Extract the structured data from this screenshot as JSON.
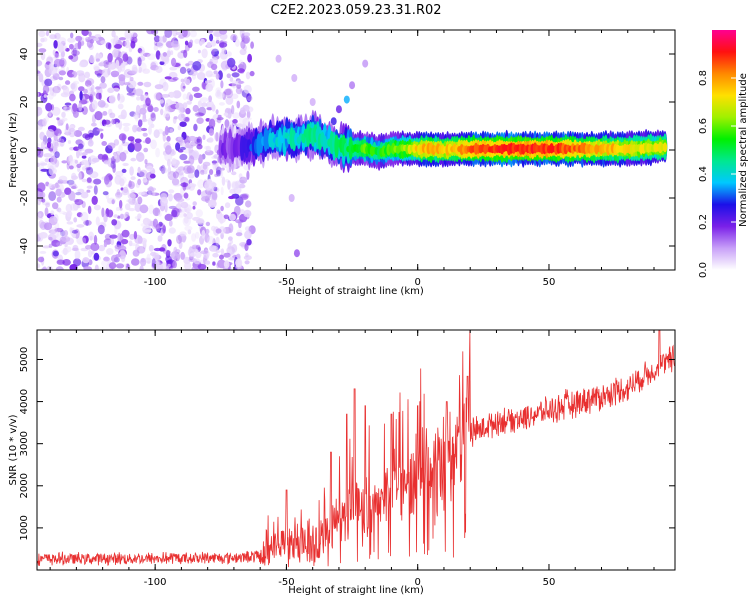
{
  "title": "C2E2.2023.059.23.31.R02",
  "chart_data": [
    {
      "type": "heatmap",
      "xlabel": "Height of straight line (km)",
      "ylabel": "Frequency (Hz)",
      "xlim": [
        -145,
        98
      ],
      "ylim": [
        -50,
        50
      ],
      "xticks": [
        -100,
        -50,
        0,
        50
      ],
      "yticks": [
        -40,
        -20,
        0,
        20,
        40
      ],
      "grid": false,
      "noise_region_x": [
        -145,
        -63
      ],
      "ridge": [
        {
          "x": -75,
          "y": 1.5,
          "a": 0.15
        },
        {
          "x": -70,
          "y": 1.0,
          "a": 0.15
        },
        {
          "x": -65,
          "y": 2.0,
          "a": 0.25
        },
        {
          "x": -60,
          "y": 3.0,
          "a": 0.3
        },
        {
          "x": -55,
          "y": 4.5,
          "a": 0.35
        },
        {
          "x": -50,
          "y": 5.0,
          "a": 0.4
        },
        {
          "x": -45,
          "y": 5.5,
          "a": 0.4
        },
        {
          "x": -40,
          "y": 6.0,
          "a": 0.45
        },
        {
          "x": -35,
          "y": 4.0,
          "a": 0.4
        },
        {
          "x": -30,
          "y": 1.5,
          "a": 0.45
        },
        {
          "x": -25,
          "y": 0.5,
          "a": 0.5
        },
        {
          "x": -20,
          "y": 0.5,
          "a": 0.55
        },
        {
          "x": -15,
          "y": -1.0,
          "a": 0.5
        },
        {
          "x": -10,
          "y": 0.5,
          "a": 0.55
        },
        {
          "x": -5,
          "y": 0.5,
          "a": 0.6
        },
        {
          "x": 0,
          "y": 0.5,
          "a": 0.7
        },
        {
          "x": 5,
          "y": 0.5,
          "a": 0.75
        },
        {
          "x": 10,
          "y": 0.0,
          "a": 0.7
        },
        {
          "x": 15,
          "y": 0.5,
          "a": 0.75
        },
        {
          "x": 20,
          "y": 0.5,
          "a": 0.8
        },
        {
          "x": 30,
          "y": 0.5,
          "a": 0.85
        },
        {
          "x": 40,
          "y": 0.5,
          "a": 0.85
        },
        {
          "x": 50,
          "y": 0.5,
          "a": 0.85
        },
        {
          "x": 60,
          "y": 0.5,
          "a": 0.8
        },
        {
          "x": 70,
          "y": 0.5,
          "a": 0.75
        },
        {
          "x": 80,
          "y": 0.5,
          "a": 0.7
        },
        {
          "x": 90,
          "y": 1.0,
          "a": 0.65
        },
        {
          "x": 95,
          "y": 1.5,
          "a": 0.7
        }
      ],
      "stray_points": [
        {
          "x": -27,
          "y": 21,
          "a": 0.35
        },
        {
          "x": -30,
          "y": 17,
          "a": 0.2
        },
        {
          "x": -32,
          "y": 12,
          "a": 0.25
        },
        {
          "x": -25,
          "y": 27,
          "a": 0.12
        },
        {
          "x": -20,
          "y": 36,
          "a": 0.1
        },
        {
          "x": -46,
          "y": -43,
          "a": 0.15
        },
        {
          "x": -48,
          "y": -20,
          "a": 0.08
        },
        {
          "x": -53,
          "y": 38,
          "a": 0.08
        },
        {
          "x": -47,
          "y": 30,
          "a": 0.08
        },
        {
          "x": -40,
          "y": 20,
          "a": 0.08
        }
      ],
      "colorbar": {
        "label": "Normalized spectral amplitude",
        "range": [
          0,
          1
        ],
        "ticks": [
          "0.0",
          "0.2",
          "0.4",
          "0.6",
          "0.8"
        ],
        "colors": [
          "#ffffff",
          "#c8a0f8",
          "#7a20e8",
          "#1b10e8",
          "#00c8ff",
          "#00e890",
          "#00f000",
          "#a0f000",
          "#ffe000",
          "#ff8800",
          "#ff1010",
          "#ff0090"
        ]
      }
    },
    {
      "type": "line",
      "xlabel": "Height of straight line (km)",
      "ylabel": "SNR (10 * v/v)",
      "xlim": [
        -145,
        98
      ],
      "ylim": [
        0,
        5700
      ],
      "xticks": [
        -100,
        -50,
        0,
        50
      ],
      "yticks": [
        1000,
        2000,
        3000,
        4000,
        5000
      ],
      "grid": false,
      "color": "#e83030",
      "baseline_points": [
        {
          "x": -145,
          "y": 250
        },
        {
          "x": -100,
          "y": 260
        },
        {
          "x": -70,
          "y": 280
        },
        {
          "x": -60,
          "y": 320
        },
        {
          "x": -55,
          "y": 450
        },
        {
          "x": -50,
          "y": 600
        },
        {
          "x": -45,
          "y": 550
        },
        {
          "x": -40,
          "y": 500
        },
        {
          "x": -35,
          "y": 750
        },
        {
          "x": -30,
          "y": 1100
        },
        {
          "x": -25,
          "y": 1400
        },
        {
          "x": -20,
          "y": 1500
        },
        {
          "x": -15,
          "y": 1600
        },
        {
          "x": -10,
          "y": 1800
        },
        {
          "x": -5,
          "y": 2000
        },
        {
          "x": 0,
          "y": 2200
        },
        {
          "x": 5,
          "y": 2400
        },
        {
          "x": 10,
          "y": 2700
        },
        {
          "x": 15,
          "y": 2950
        },
        {
          "x": 20,
          "y": 3200
        },
        {
          "x": 25,
          "y": 3350
        },
        {
          "x": 30,
          "y": 3500
        },
        {
          "x": 40,
          "y": 3600
        },
        {
          "x": 50,
          "y": 3750
        },
        {
          "x": 60,
          "y": 3950
        },
        {
          "x": 70,
          "y": 4100
        },
        {
          "x": 80,
          "y": 4300
        },
        {
          "x": 90,
          "y": 4750
        },
        {
          "x": 98,
          "y": 5000
        }
      ],
      "peaks": [
        {
          "x": -50,
          "y": 1900
        },
        {
          "x": -33,
          "y": 2800
        },
        {
          "x": -27,
          "y": 3700
        },
        {
          "x": -24,
          "y": 4300
        },
        {
          "x": -20,
          "y": 3900
        },
        {
          "x": -10,
          "y": 3700
        },
        {
          "x": 0,
          "y": 3900
        },
        {
          "x": 11,
          "y": 4000
        },
        {
          "x": 19,
          "y": 4600
        },
        {
          "x": 92,
          "y": 5700
        }
      ]
    }
  ]
}
